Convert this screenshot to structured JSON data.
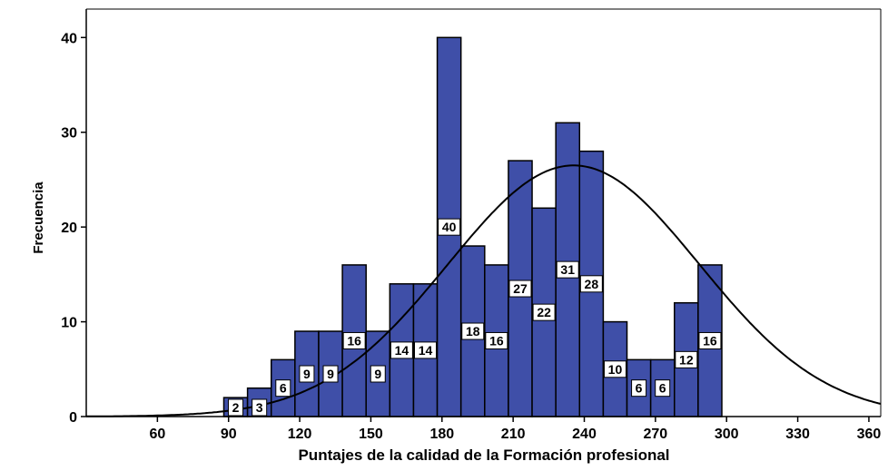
{
  "chart_data": {
    "type": "bar",
    "subtype": "histogram",
    "xlabel": "Puntajes de la calidad de la Formación profesional",
    "ylabel": "Frecuencia",
    "xlim": [
      30,
      365
    ],
    "ylim": [
      0,
      43
    ],
    "x_ticks": [
      60,
      90,
      120,
      150,
      180,
      210,
      240,
      270,
      300,
      330,
      360
    ],
    "y_ticks": [
      0,
      10,
      20,
      30,
      40
    ],
    "bin_width": 10,
    "bins": [
      {
        "start": 88,
        "count": 2
      },
      {
        "start": 98,
        "count": 3
      },
      {
        "start": 108,
        "count": 6
      },
      {
        "start": 118,
        "count": 9
      },
      {
        "start": 128,
        "count": 9
      },
      {
        "start": 138,
        "count": 16
      },
      {
        "start": 148,
        "count": 9
      },
      {
        "start": 158,
        "count": 14
      },
      {
        "start": 168,
        "count": 14
      },
      {
        "start": 178,
        "count": 40
      },
      {
        "start": 188,
        "count": 18
      },
      {
        "start": 198,
        "count": 16
      },
      {
        "start": 208,
        "count": 27
      },
      {
        "start": 218,
        "count": 22
      },
      {
        "start": 228,
        "count": 31
      },
      {
        "start": 238,
        "count": 28
      },
      {
        "start": 248,
        "count": 10
      },
      {
        "start": 258,
        "count": 6
      },
      {
        "start": 268,
        "count": 6
      },
      {
        "start": 278,
        "count": 12
      },
      {
        "start": 288,
        "count": 16
      }
    ],
    "normal_curve": {
      "mean": 235.5,
      "sd": 53,
      "peak": 26.5
    },
    "bar_color": "#3f4fa8",
    "bar_border_color": "#000000",
    "grid": false,
    "legend": "none"
  }
}
